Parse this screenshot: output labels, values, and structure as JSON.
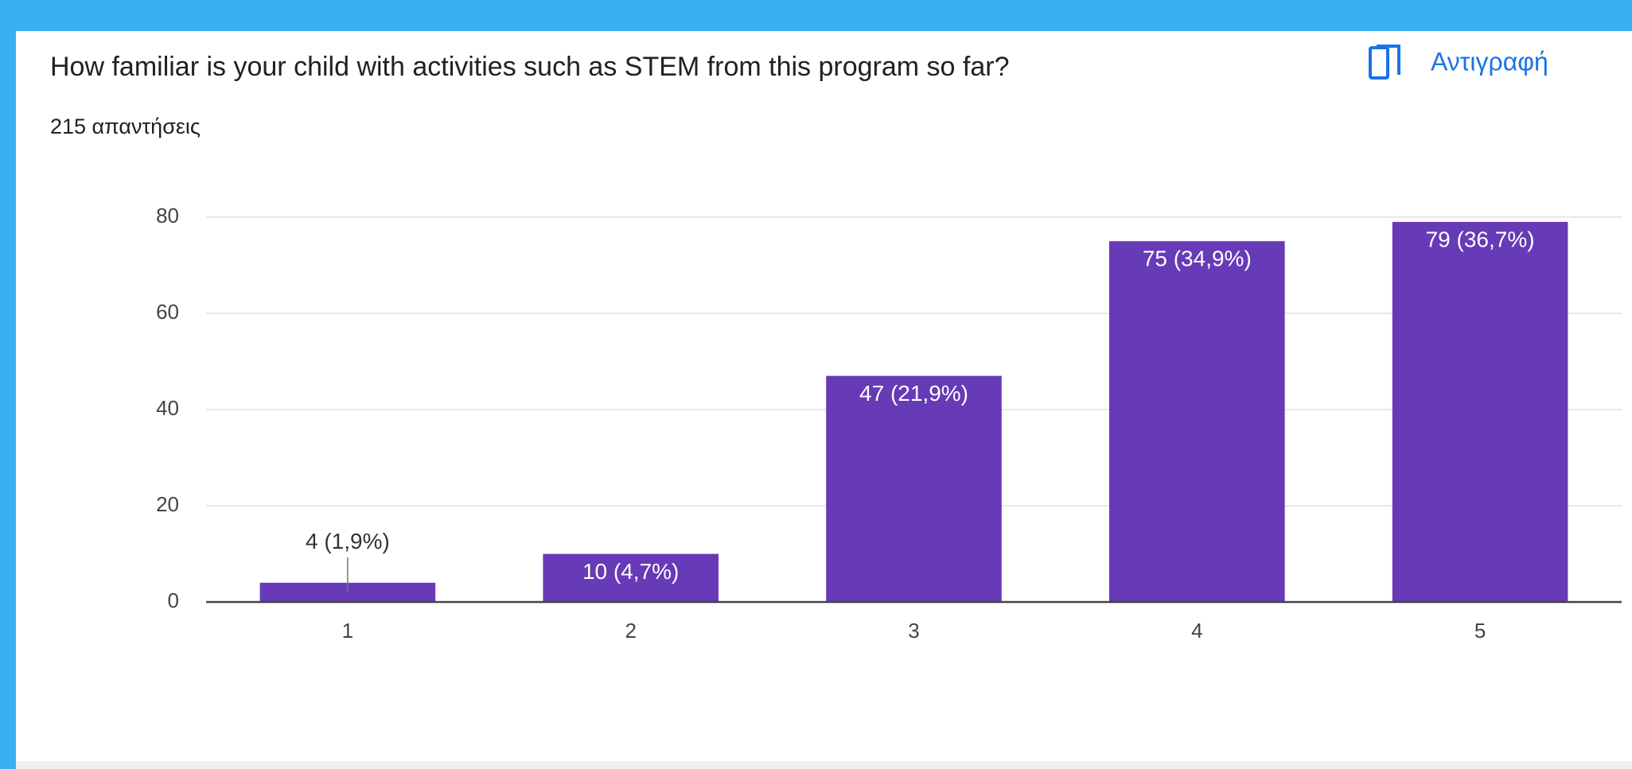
{
  "header": {
    "title": "How familiar is your child with activities such as STEM from this program so far?",
    "copy_label": "Αντιγραφή",
    "responses": "215 απαντήσεις"
  },
  "chart_data": {
    "type": "bar",
    "categories": [
      "1",
      "2",
      "3",
      "4",
      "5"
    ],
    "values": [
      4,
      10,
      47,
      75,
      79
    ],
    "value_labels": [
      "4 (1,9%)",
      "10 (4,7%)",
      "47 (21,9%)",
      "75 (34,9%)",
      "79 (36,7%)"
    ],
    "color": "#673ab7",
    "ylim": [
      0,
      80
    ],
    "yticks": [
      0,
      20,
      40,
      60,
      80
    ],
    "grid": true
  }
}
